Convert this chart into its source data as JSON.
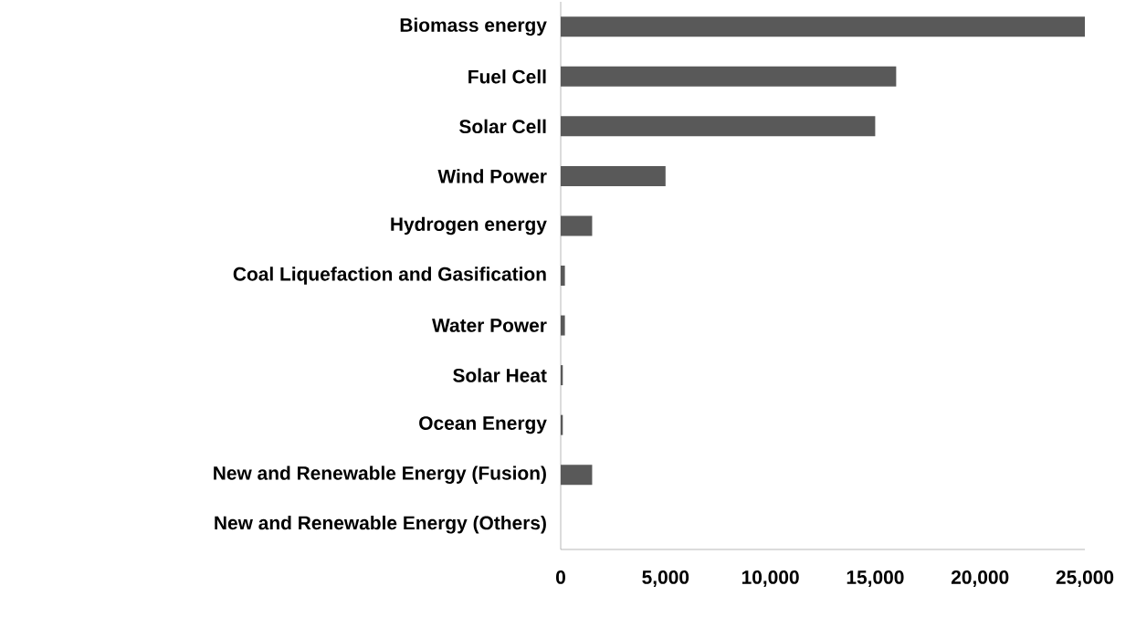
{
  "chart_data": {
    "type": "bar",
    "orientation": "horizontal",
    "categories": [
      "Biomass energy",
      "Fuel Cell",
      "Solar Cell",
      "Wind Power",
      "Hydrogen energy",
      "Coal Liquefaction and Gasification",
      "Water Power",
      "Solar Heat",
      "Ocean Energy",
      "New and Renewable Energy (Fusion)",
      "New and Renewable Energy (Others)"
    ],
    "values": [
      25000,
      16000,
      15000,
      5000,
      1500,
      200,
      200,
      100,
      100,
      1500,
      0
    ],
    "color": "#595959",
    "xlim": [
      0,
      25000
    ],
    "xticks": [
      {
        "value": 0,
        "label": "0"
      },
      {
        "value": 5000,
        "label": "5,000"
      },
      {
        "value": 10000,
        "label": "10,000"
      },
      {
        "value": 15000,
        "label": "15,000"
      },
      {
        "value": 20000,
        "label": "20,000"
      },
      {
        "value": 25000,
        "label": "25,000"
      }
    ],
    "grid": false
  }
}
